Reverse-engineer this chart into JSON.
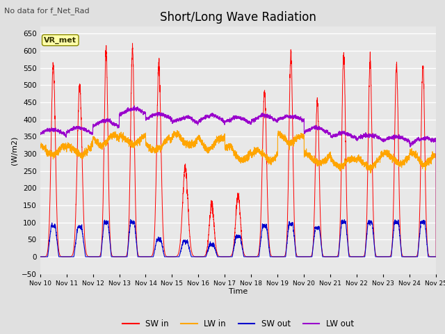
{
  "title": "Short/Long Wave Radiation",
  "subtitle": "No data for f_Net_Rad",
  "ylabel": "(W/m2)",
  "xlabel": "Time",
  "ylim": [
    -50,
    670
  ],
  "yticks": [
    -50,
    0,
    50,
    100,
    150,
    200,
    250,
    300,
    350,
    400,
    450,
    500,
    550,
    600,
    650
  ],
  "bg_color": "#e0e0e0",
  "plot_bg_color": "#e8e8e8",
  "legend_label": "VR_met",
  "colors": {
    "SW_in": "#ff0000",
    "LW_in": "#ffa500",
    "SW_out": "#0000cc",
    "LW_out": "#9900cc"
  },
  "legend_entries": [
    "SW in",
    "LW in",
    "SW out",
    "LW out"
  ],
  "n_days": 15,
  "points_per_day": 288,
  "SW_in_peaks": [
    560,
    500,
    600,
    605,
    555,
    260,
    150,
    180,
    480,
    590,
    455,
    590,
    570,
    560,
    555
  ],
  "SW_in_widths": [
    0.08,
    0.09,
    0.07,
    0.07,
    0.08,
    0.1,
    0.09,
    0.09,
    0.08,
    0.07,
    0.07,
    0.07,
    0.07,
    0.07,
    0.07
  ],
  "SW_out_peaks": [
    90,
    85,
    100,
    100,
    50,
    45,
    35,
    60,
    90,
    95,
    85,
    100,
    100,
    100,
    100
  ],
  "SW_out_widths": [
    0.13,
    0.14,
    0.12,
    0.12,
    0.13,
    0.15,
    0.14,
    0.14,
    0.13,
    0.12,
    0.12,
    0.12,
    0.12,
    0.12,
    0.12
  ],
  "LW_in_base": [
    310,
    310,
    340,
    340,
    325,
    340,
    330,
    300,
    295,
    345,
    285,
    275,
    275,
    285,
    285
  ],
  "LW_out_base": [
    355,
    360,
    380,
    415,
    400,
    390,
    395,
    390,
    395,
    395,
    360,
    345,
    340,
    335,
    330
  ]
}
